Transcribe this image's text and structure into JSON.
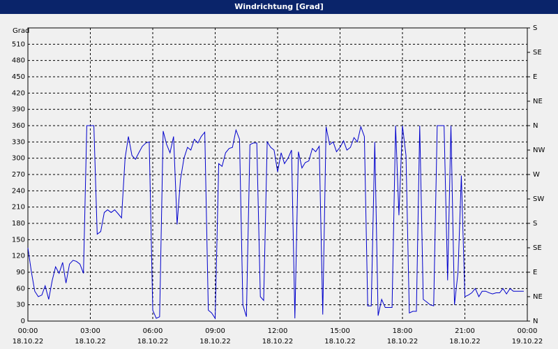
{
  "chart_data": {
    "type": "line",
    "title": "Windrichtung [Grad]",
    "y_label": "Grad",
    "x": [
      0,
      0.17,
      0.33,
      0.5,
      0.67,
      0.83,
      1,
      1.17,
      1.33,
      1.5,
      1.67,
      1.83,
      2,
      2.17,
      2.33,
      2.5,
      2.67,
      2.83,
      3,
      3.17,
      3.33,
      3.5,
      3.67,
      3.83,
      4,
      4.17,
      4.33,
      4.5,
      4.67,
      4.83,
      5,
      5.17,
      5.33,
      5.5,
      5.67,
      5.83,
      6,
      6.17,
      6.33,
      6.5,
      6.67,
      6.83,
      7,
      7.17,
      7.33,
      7.5,
      7.67,
      7.83,
      8,
      8.17,
      8.33,
      8.5,
      8.67,
      8.83,
      9,
      9.17,
      9.33,
      9.5,
      9.67,
      9.83,
      10,
      10.17,
      10.33,
      10.5,
      10.67,
      10.83,
      11,
      11.17,
      11.33,
      11.5,
      11.67,
      11.83,
      12,
      12.17,
      12.33,
      12.5,
      12.67,
      12.83,
      13,
      13.17,
      13.33,
      13.5,
      13.67,
      13.83,
      14,
      14.17,
      14.33,
      14.5,
      14.67,
      14.83,
      15,
      15.17,
      15.33,
      15.5,
      15.67,
      15.83,
      16,
      16.17,
      16.33,
      16.5,
      16.67,
      16.83,
      17,
      17.17,
      17.33,
      17.5,
      17.67,
      17.83,
      18,
      18.17,
      18.33,
      18.5,
      18.67,
      18.83,
      19,
      19.17,
      19.33,
      19.5,
      19.67,
      19.83,
      20,
      20.17,
      20.33,
      20.5,
      20.67,
      20.83,
      21,
      21.17,
      21.33,
      21.5,
      21.67,
      21.83,
      22,
      22.17,
      22.33,
      22.5,
      22.67,
      22.83,
      23,
      23.17,
      23.33,
      23.5,
      23.67,
      23.83
    ],
    "series": [
      {
        "color": "#0000cc",
        "values": [
          135,
          90,
          55,
          45,
          48,
          65,
          40,
          75,
          100,
          88,
          108,
          70,
          105,
          112,
          110,
          105,
          88,
          360,
          360,
          360,
          160,
          165,
          200,
          205,
          200,
          205,
          198,
          190,
          300,
          340,
          305,
          298,
          310,
          322,
          328,
          330,
          20,
          5,
          8,
          350,
          325,
          310,
          340,
          178,
          260,
          300,
          320,
          315,
          335,
          328,
          340,
          348,
          20,
          15,
          5,
          290,
          285,
          310,
          318,
          320,
          352,
          335,
          30,
          8,
          325,
          328,
          328,
          45,
          38,
          330,
          320,
          315,
          275,
          310,
          290,
          300,
          315,
          5,
          312,
          282,
          292,
          295,
          318,
          312,
          322,
          12,
          358,
          325,
          330,
          312,
          320,
          332,
          315,
          320,
          338,
          330,
          358,
          340,
          28,
          28,
          330,
          10,
          40,
          25,
          25,
          25,
          360,
          195,
          360,
          305,
          15,
          18,
          18,
          360,
          40,
          35,
          30,
          28,
          360,
          360,
          360,
          75,
          360,
          30,
          90,
          268,
          45,
          48,
          52,
          60,
          45,
          55,
          55,
          52,
          50,
          52,
          52,
          60,
          50,
          60,
          55,
          55,
          55,
          55
        ]
      }
    ],
    "xlim": [
      0,
      24
    ],
    "xticks": [
      {
        "value": 0,
        "label": "00:00"
      },
      {
        "value": 3,
        "label": "03:00"
      },
      {
        "value": 6,
        "label": "06:00"
      },
      {
        "value": 9,
        "label": "09:00"
      },
      {
        "value": 12,
        "label": "12:00"
      },
      {
        "value": 15,
        "label": "15:00"
      },
      {
        "value": 18,
        "label": "18:00"
      },
      {
        "value": 21,
        "label": "21:00"
      },
      {
        "value": 24,
        "label": "00:00"
      }
    ],
    "xtick_dates": [
      "18.10.22",
      "18.10.22",
      "18.10.22",
      "18.10.22",
      "18.10.22",
      "18.10.22",
      "18.10.22",
      "18.10.22",
      "19.10.22"
    ],
    "ylim": [
      0,
      540
    ],
    "yticks": [
      0,
      30,
      60,
      90,
      120,
      150,
      180,
      210,
      240,
      270,
      300,
      330,
      360,
      390,
      420,
      450,
      480,
      510
    ],
    "y2lim": [
      0,
      540
    ],
    "y2ticks": [
      {
        "value": 0,
        "label": "N"
      },
      {
        "value": 45,
        "label": "NE"
      },
      {
        "value": 90,
        "label": "E"
      },
      {
        "value": 135,
        "label": "SE"
      },
      {
        "value": 180,
        "label": "S"
      },
      {
        "value": 225,
        "label": "SW"
      },
      {
        "value": 270,
        "label": "W"
      },
      {
        "value": 315,
        "label": "NW"
      },
      {
        "value": 360,
        "label": "N"
      },
      {
        "value": 405,
        "label": "NE"
      },
      {
        "value": 450,
        "label": "E"
      },
      {
        "value": 495,
        "label": "SE"
      },
      {
        "value": 540,
        "label": "S"
      }
    ],
    "grid": true
  }
}
